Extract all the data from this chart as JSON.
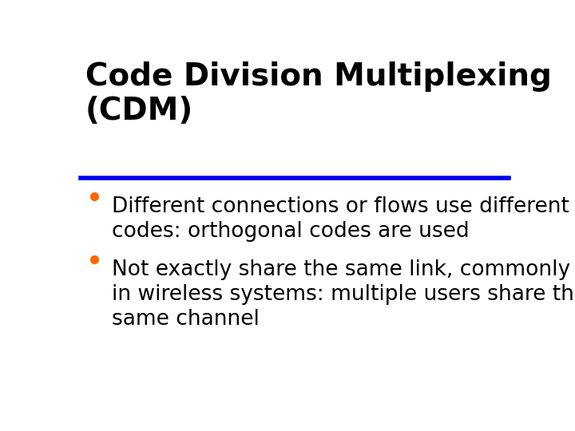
{
  "title_line1": "Code Division Multiplexing",
  "title_line2": "(CDM)",
  "title_color": "#000000",
  "title_fontsize": 28,
  "title_bold": true,
  "separator_color": "#0000EE",
  "separator_linewidth": 4,
  "bullet_color": "#FF6600",
  "bullet_fontsize": 19,
  "text_color": "#000000",
  "background_color": "#FFFFFF",
  "bullets": [
    [
      "Different connections or flows use different",
      "codes: orthogonal codes are used"
    ],
    [
      "Not exactly share the same link, commonly used",
      "in wireless systems: multiple users share the",
      "same channel"
    ]
  ]
}
